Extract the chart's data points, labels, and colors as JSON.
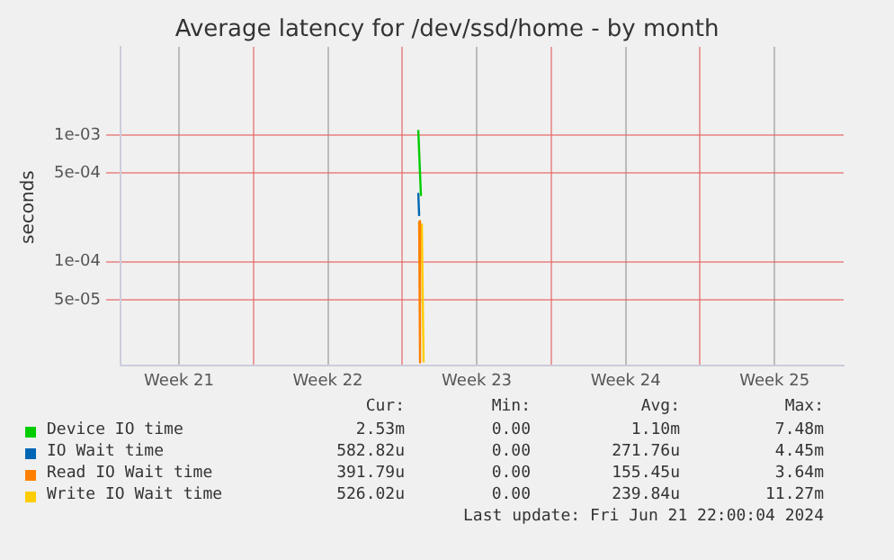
{
  "chart_data": {
    "type": "line",
    "title": "Average latency for /dev/ssd/home - by month",
    "ylabel": "seconds",
    "series": [
      {
        "name": "Device IO time",
        "color": "#00cc00",
        "x": [
          "2024-06-03T18:00",
          "2024-06-03T21:00"
        ],
        "values": [
          0.0011,
          0.00033
        ]
      },
      {
        "name": "IO Wait time",
        "color": "#0066b3",
        "x": [
          "2024-06-03T18:00",
          "2024-06-03T19:00"
        ],
        "values": [
          0.00035,
          0.00023
        ]
      },
      {
        "name": "Read IO Wait time",
        "color": "#ff8000",
        "x": [
          "2024-06-03T19:00",
          "2024-06-03T20:00"
        ],
        "values": [
          0.00021,
          1.6e-05
        ]
      },
      {
        "name": "Write IO Wait time",
        "color": "#ffcc00",
        "x": [
          "2024-06-03T22:00",
          "2024-06-04T00:00"
        ],
        "values": [
          0.0002,
          1.6e-05
        ]
      }
    ],
    "log": "y",
    "ylim": [
      1.5e-05,
      0.005
    ],
    "yticks": [
      {
        "value": 5e-05,
        "label": "5e-05"
      },
      {
        "value": 0.0001,
        "label": "1e-04"
      },
      {
        "value": 0.0005,
        "label": "5e-04"
      },
      {
        "value": 0.001,
        "label": "1e-03"
      }
    ],
    "xlim": [
      "2024-05-20T18:00",
      "2024-06-23T18:00"
    ],
    "xticks": [
      {
        "value": "2024-05-23T12:00",
        "label": "Week 21"
      },
      {
        "value": "2024-05-27",
        "label": null
      },
      {
        "value": "2024-05-30T12:00",
        "label": "Week 22"
      },
      {
        "value": "2024-06-03",
        "label": null
      },
      {
        "value": "2024-06-06T12:00",
        "label": "Week 23"
      },
      {
        "value": "2024-06-10",
        "label": null
      },
      {
        "value": "2024-06-13T12:00",
        "label": "Week 24"
      },
      {
        "value": "2024-06-17",
        "label": null
      },
      {
        "value": "2024-06-20T12:00",
        "label": "Week 25"
      }
    ],
    "grid": true,
    "legend": "bottom",
    "line_style": "solid",
    "marker": "none",
    "annotations": [
      "Cur:",
      "Min:",
      "Avg:",
      "Max:",
      "2.53m",
      "0.00",
      "1.10m",
      "7.48m",
      "582.82u",
      "0.00",
      "271.76u",
      "4.45m",
      "391.79u",
      "0.00",
      "155.45u",
      "3.64m",
      "526.02u",
      "0.00",
      "239.84u",
      "11.27m",
      "Last update: Fri Jun 21 22:00:04 2024"
    ]
  }
}
